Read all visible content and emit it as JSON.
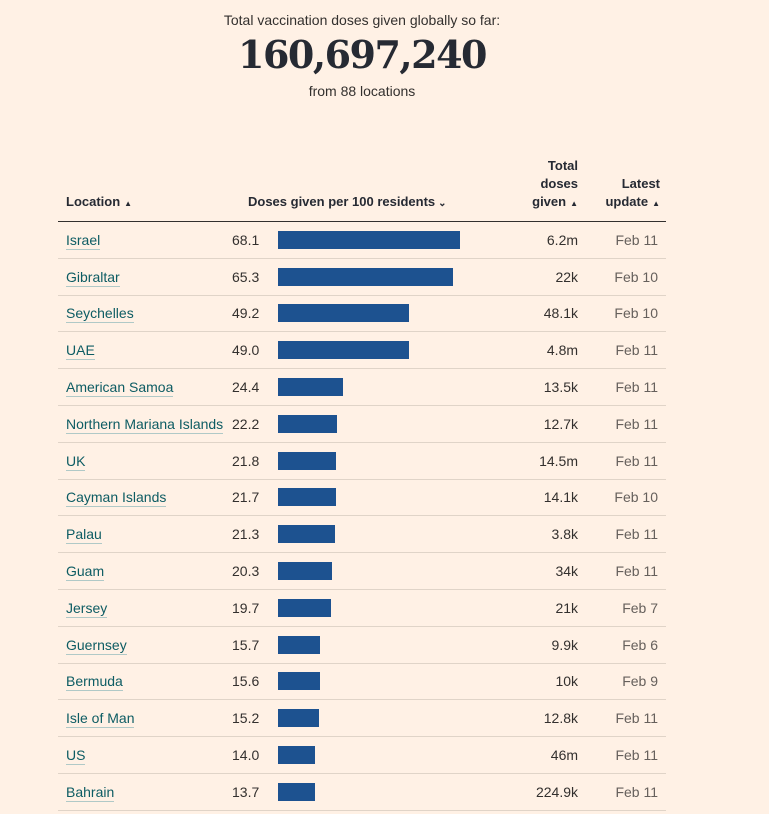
{
  "summary": {
    "intro": "Total vaccination doses given globally so far:",
    "total": "160,697,240",
    "from": "from 88 locations"
  },
  "table": {
    "headers": {
      "location": "Location",
      "doses": "Doses given per 100 residents",
      "total_line1": "Total",
      "total_line2": "doses",
      "total_line3": "given",
      "update_line1": "Latest",
      "update_line2": "update"
    },
    "sort_icon": "sort-updown-icon",
    "active_sort_icon": "chevron-down-icon",
    "bar_color": "#1d5290",
    "bar_max": 68.1,
    "rows": [
      {
        "location": "Israel",
        "per100": "68.1",
        "total": "6.2m",
        "updated": "Feb 11"
      },
      {
        "location": "Gibraltar",
        "per100": "65.3",
        "total": "22k",
        "updated": "Feb 10"
      },
      {
        "location": "Seychelles",
        "per100": "49.2",
        "total": "48.1k",
        "updated": "Feb 10"
      },
      {
        "location": "UAE",
        "per100": "49.0",
        "total": "4.8m",
        "updated": "Feb 11"
      },
      {
        "location": "American Samoa",
        "per100": "24.4",
        "total": "13.5k",
        "updated": "Feb 11"
      },
      {
        "location": "Northern Mariana Islands",
        "per100": "22.2",
        "total": "12.7k",
        "updated": "Feb 11"
      },
      {
        "location": "UK",
        "per100": "21.8",
        "total": "14.5m",
        "updated": "Feb 11"
      },
      {
        "location": "Cayman Islands",
        "per100": "21.7",
        "total": "14.1k",
        "updated": "Feb 10"
      },
      {
        "location": "Palau",
        "per100": "21.3",
        "total": "3.8k",
        "updated": "Feb 11"
      },
      {
        "location": "Guam",
        "per100": "20.3",
        "total": "34k",
        "updated": "Feb 11"
      },
      {
        "location": "Jersey",
        "per100": "19.7",
        "total": "21k",
        "updated": "Feb 7"
      },
      {
        "location": "Guernsey",
        "per100": "15.7",
        "total": "9.9k",
        "updated": "Feb 6"
      },
      {
        "location": "Bermuda",
        "per100": "15.6",
        "total": "10k",
        "updated": "Feb 9"
      },
      {
        "location": "Isle of Man",
        "per100": "15.2",
        "total": "12.8k",
        "updated": "Feb 11"
      },
      {
        "location": "US",
        "per100": "14.0",
        "total": "46m",
        "updated": "Feb 11"
      },
      {
        "location": "Bahrain",
        "per100": "13.7",
        "total": "224.9k",
        "updated": "Feb 11"
      }
    ]
  }
}
